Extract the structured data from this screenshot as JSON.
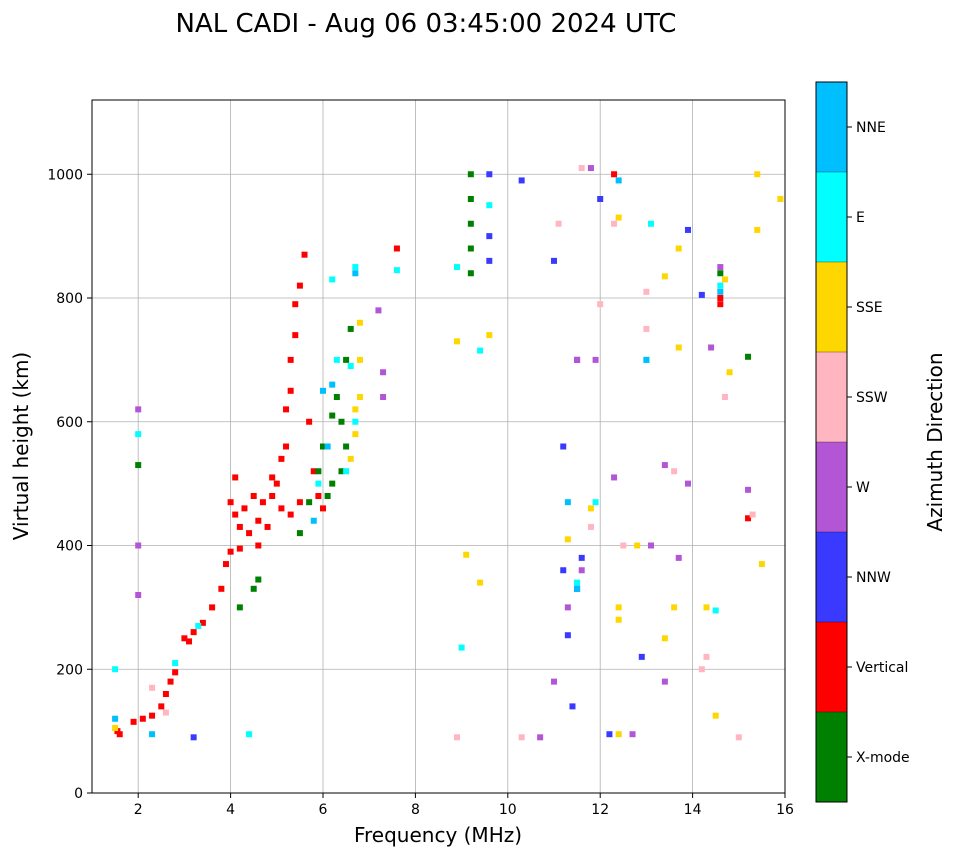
{
  "chart_data": {
    "type": "scatter",
    "title": "NAL CADI - Aug 06 03:45:00 2024 UTC",
    "xlabel": "Frequency (MHz)",
    "ylabel": "Virtual height (km)",
    "xlim": [
      1,
      16
    ],
    "ylim": [
      0,
      1120
    ],
    "xticks": [
      2,
      4,
      6,
      8,
      10,
      12,
      14,
      16
    ],
    "yticks": [
      0,
      200,
      400,
      600,
      800,
      1000
    ],
    "grid": true,
    "colorbar": {
      "label": "Azimuth Direction",
      "categories": [
        {
          "name": "X-mode",
          "color": "#008000"
        },
        {
          "name": "Vertical",
          "color": "#ff0000"
        },
        {
          "name": "NNW",
          "color": "#3a3aff"
        },
        {
          "name": "W",
          "color": "#b356d6"
        },
        {
          "name": "SSW",
          "color": "#ffb6c1"
        },
        {
          "name": "SSE",
          "color": "#ffd700"
        },
        {
          "name": "E",
          "color": "#00ffff"
        },
        {
          "name": "NNE",
          "color": "#00bfff"
        }
      ]
    },
    "series": [
      {
        "name": "Vertical",
        "cat": "Vertical",
        "points": [
          [
            1.55,
            100
          ],
          [
            1.6,
            95
          ],
          [
            1.9,
            115
          ],
          [
            2.1,
            120
          ],
          [
            2.3,
            125
          ],
          [
            2.5,
            140
          ],
          [
            2.6,
            160
          ],
          [
            2.7,
            180
          ],
          [
            2.8,
            195
          ],
          [
            3.0,
            250
          ],
          [
            3.1,
            245
          ],
          [
            3.2,
            260
          ],
          [
            3.4,
            275
          ],
          [
            3.6,
            300
          ],
          [
            3.8,
            330
          ],
          [
            4.0,
            390
          ],
          [
            4.0,
            470
          ],
          [
            4.1,
            450
          ],
          [
            4.1,
            510
          ],
          [
            4.2,
            430
          ],
          [
            4.3,
            460
          ],
          [
            4.4,
            420
          ],
          [
            4.5,
            480
          ],
          [
            4.6,
            440
          ],
          [
            4.7,
            470
          ],
          [
            4.8,
            430
          ],
          [
            4.9,
            480
          ],
          [
            5.0,
            500
          ],
          [
            5.1,
            540
          ],
          [
            5.2,
            560
          ],
          [
            5.2,
            620
          ],
          [
            5.3,
            650
          ],
          [
            5.3,
            700
          ],
          [
            5.4,
            740
          ],
          [
            5.4,
            790
          ],
          [
            5.5,
            820
          ],
          [
            5.6,
            870
          ],
          [
            5.7,
            600
          ],
          [
            5.8,
            520
          ],
          [
            5.9,
            480
          ],
          [
            6.0,
            460
          ],
          [
            5.1,
            460
          ],
          [
            4.6,
            400
          ],
          [
            4.2,
            395
          ],
          [
            3.9,
            370
          ],
          [
            5.3,
            450
          ],
          [
            5.5,
            470
          ],
          [
            4.9,
            510
          ],
          [
            12.3,
            1000
          ],
          [
            14.6,
            800
          ],
          [
            14.6,
            790
          ],
          [
            15.2,
            444
          ],
          [
            7.6,
            880
          ]
        ]
      },
      {
        "name": "X-mode",
        "cat": "X-mode",
        "points": [
          [
            4.2,
            300
          ],
          [
            4.5,
            330
          ],
          [
            4.6,
            345
          ],
          [
            5.5,
            420
          ],
          [
            5.7,
            470
          ],
          [
            5.9,
            520
          ],
          [
            6.0,
            560
          ],
          [
            6.1,
            480
          ],
          [
            6.2,
            610
          ],
          [
            6.3,
            640
          ],
          [
            6.4,
            600
          ],
          [
            6.5,
            560
          ],
          [
            6.6,
            750
          ],
          [
            6.5,
            700
          ],
          [
            6.2,
            500
          ],
          [
            6.4,
            520
          ],
          [
            9.2,
            840
          ],
          [
            9.2,
            880
          ],
          [
            9.2,
            920
          ],
          [
            9.2,
            960
          ],
          [
            9.2,
            1000
          ],
          [
            2.0,
            530
          ],
          [
            15.2,
            705
          ],
          [
            14.6,
            840
          ]
        ]
      },
      {
        "name": "NNW",
        "cat": "NNW",
        "points": [
          [
            3.2,
            90
          ],
          [
            9.6,
            1000
          ],
          [
            9.6,
            900
          ],
          [
            9.6,
            860
          ],
          [
            10.3,
            990
          ],
          [
            11.2,
            360
          ],
          [
            11.3,
            255
          ],
          [
            11.4,
            140
          ],
          [
            11.6,
            380
          ],
          [
            12.0,
            960
          ],
          [
            12.2,
            95
          ],
          [
            12.9,
            220
          ],
          [
            13.9,
            910
          ],
          [
            14.2,
            805
          ],
          [
            11.2,
            560
          ],
          [
            11.5,
            330
          ],
          [
            11.0,
            860
          ],
          [
            11.5,
            700
          ]
        ]
      },
      {
        "name": "W",
        "cat": "W",
        "points": [
          [
            2.0,
            320
          ],
          [
            2.0,
            400
          ],
          [
            2.0,
            620
          ],
          [
            7.2,
            780
          ],
          [
            7.3,
            680
          ],
          [
            7.3,
            640
          ],
          [
            10.7,
            90
          ],
          [
            11.0,
            180
          ],
          [
            11.3,
            300
          ],
          [
            11.6,
            360
          ],
          [
            11.8,
            1010
          ],
          [
            12.3,
            510
          ],
          [
            12.7,
            95
          ],
          [
            13.1,
            400
          ],
          [
            13.4,
            530
          ],
          [
            13.7,
            380
          ],
          [
            13.9,
            500
          ],
          [
            14.4,
            720
          ],
          [
            14.6,
            850
          ],
          [
            15.2,
            490
          ],
          [
            13.4,
            180
          ],
          [
            11.5,
            700
          ],
          [
            11.9,
            700
          ]
        ]
      },
      {
        "name": "SSW",
        "cat": "SSW",
        "points": [
          [
            2.3,
            170
          ],
          [
            2.6,
            130
          ],
          [
            8.9,
            90
          ],
          [
            10.3,
            90
          ],
          [
            11.1,
            920
          ],
          [
            11.6,
            1010
          ],
          [
            11.8,
            430
          ],
          [
            12.3,
            920
          ],
          [
            13.0,
            810
          ],
          [
            13.0,
            750
          ],
          [
            13.6,
            520
          ],
          [
            14.2,
            200
          ],
          [
            14.3,
            220
          ],
          [
            14.7,
            640
          ],
          [
            15.3,
            450
          ],
          [
            15.0,
            90
          ],
          [
            12.0,
            790
          ],
          [
            12.5,
            400
          ]
        ]
      },
      {
        "name": "SSE",
        "cat": "SSE",
        "points": [
          [
            1.5,
            105
          ],
          [
            6.6,
            540
          ],
          [
            6.7,
            580
          ],
          [
            6.8,
            640
          ],
          [
            6.8,
            700
          ],
          [
            6.8,
            760
          ],
          [
            6.7,
            620
          ],
          [
            8.9,
            730
          ],
          [
            9.1,
            385
          ],
          [
            9.4,
            340
          ],
          [
            9.6,
            740
          ],
          [
            11.3,
            410
          ],
          [
            11.8,
            460
          ],
          [
            12.4,
            930
          ],
          [
            12.4,
            280
          ],
          [
            12.4,
            300
          ],
          [
            12.4,
            95
          ],
          [
            12.8,
            400
          ],
          [
            13.4,
            250
          ],
          [
            13.6,
            300
          ],
          [
            13.7,
            720
          ],
          [
            13.7,
            880
          ],
          [
            13.4,
            835
          ],
          [
            14.3,
            300
          ],
          [
            14.5,
            125
          ],
          [
            14.8,
            680
          ],
          [
            14.7,
            830
          ],
          [
            15.4,
            1000
          ],
          [
            15.4,
            910
          ],
          [
            15.5,
            370
          ],
          [
            15.9,
            960
          ]
        ]
      },
      {
        "name": "E",
        "cat": "E",
        "points": [
          [
            1.5,
            200
          ],
          [
            2.0,
            580
          ],
          [
            2.8,
            210
          ],
          [
            3.3,
            270
          ],
          [
            4.4,
            95
          ],
          [
            6.2,
            830
          ],
          [
            6.3,
            700
          ],
          [
            6.5,
            520
          ],
          [
            6.6,
            690
          ],
          [
            6.7,
            600
          ],
          [
            7.6,
            845
          ],
          [
            8.9,
            850
          ],
          [
            9.0,
            235
          ],
          [
            9.4,
            715
          ],
          [
            9.6,
            950
          ],
          [
            11.5,
            340
          ],
          [
            11.9,
            470
          ],
          [
            13.1,
            920
          ],
          [
            13.0,
            700
          ],
          [
            14.6,
            820
          ],
          [
            14.5,
            295
          ],
          [
            6.7,
            850
          ],
          [
            5.9,
            500
          ]
        ]
      },
      {
        "name": "NNE",
        "cat": "NNE",
        "points": [
          [
            1.5,
            120
          ],
          [
            2.3,
            95
          ],
          [
            6.0,
            650
          ],
          [
            6.2,
            660
          ],
          [
            6.7,
            840
          ],
          [
            11.3,
            470
          ],
          [
            11.5,
            330
          ],
          [
            12.4,
            990
          ],
          [
            13.0,
            700
          ],
          [
            14.6,
            810
          ],
          [
            5.8,
            440
          ],
          [
            6.1,
            560
          ]
        ]
      }
    ]
  }
}
